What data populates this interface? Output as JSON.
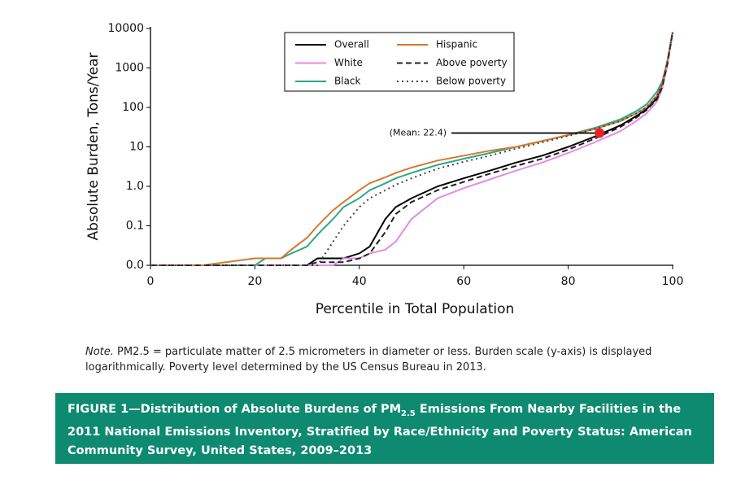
{
  "chart_data": {
    "type": "line",
    "y_label": "Absolute Burden, Tons/Year",
    "x_label": "Percentile in Total Population",
    "y_scale": "log",
    "xlim": [
      0,
      100
    ],
    "xticks": [
      0,
      20,
      40,
      60,
      80,
      100
    ],
    "ylim": [
      0.01,
      10000
    ],
    "yticks": [
      {
        "value": 0.01,
        "label": "0.0"
      },
      {
        "value": 0.1,
        "label": "0.1"
      },
      {
        "value": 1,
        "label": "1.0"
      },
      10,
      100,
      1000,
      10000
    ],
    "x": [
      0,
      10,
      20,
      22,
      25,
      27,
      30,
      32,
      35,
      37,
      40,
      42,
      45,
      47,
      50,
      55,
      60,
      65,
      70,
      75,
      80,
      85,
      90,
      93,
      95,
      97,
      98,
      99,
      100
    ],
    "series": [
      {
        "name": "Overall",
        "color": "#000000",
        "dash": "solid",
        "values": [
          0.01,
          0.01,
          0.01,
          0.01,
          0.01,
          0.01,
          0.01,
          0.015,
          0.015,
          0.015,
          0.02,
          0.03,
          0.15,
          0.3,
          0.5,
          1,
          1.6,
          2.5,
          4,
          6,
          10,
          18,
          35,
          60,
          90,
          170,
          350,
          1300,
          8000
        ]
      },
      {
        "name": "White",
        "color": "#e48be6",
        "dash": "solid",
        "values": [
          0.01,
          0.01,
          0.01,
          0.01,
          0.01,
          0.01,
          0.01,
          0.01,
          0.01,
          0.015,
          0.015,
          0.02,
          0.025,
          0.04,
          0.15,
          0.5,
          0.9,
          1.5,
          2.5,
          4,
          7,
          13,
          25,
          45,
          70,
          140,
          300,
          1200,
          8000
        ]
      },
      {
        "name": "Black",
        "color": "#2aa88a",
        "dash": "solid",
        "values": [
          0.01,
          0.01,
          0.01,
          0.015,
          0.015,
          0.02,
          0.03,
          0.06,
          0.15,
          0.3,
          0.5,
          0.8,
          1.2,
          1.6,
          2.2,
          3.5,
          5,
          7,
          10,
          14,
          20,
          30,
          50,
          80,
          120,
          250,
          450,
          1500,
          8000
        ]
      },
      {
        "name": "Hispanic",
        "color": "#d8782a",
        "dash": "solid",
        "values": [
          0.01,
          0.01,
          0.015,
          0.015,
          0.015,
          0.025,
          0.05,
          0.1,
          0.25,
          0.4,
          0.8,
          1.2,
          1.7,
          2.2,
          3,
          4.5,
          6,
          8,
          10,
          14,
          20,
          28,
          45,
          70,
          100,
          200,
          400,
          1500,
          8000
        ]
      },
      {
        "name": "Above poverty",
        "color": "#222222",
        "dash": "dashed",
        "values": [
          0.01,
          0.01,
          0.01,
          0.01,
          0.01,
          0.01,
          0.01,
          0.012,
          0.012,
          0.012,
          0.015,
          0.02,
          0.07,
          0.2,
          0.4,
          0.8,
          1.3,
          2.1,
          3.3,
          5,
          8.5,
          16,
          32,
          55,
          85,
          160,
          330,
          1300,
          8000
        ]
      },
      {
        "name": "Below poverty",
        "color": "#444444",
        "dash": "dotted",
        "values": [
          0.01,
          0.01,
          0.01,
          0.01,
          0.01,
          0.01,
          0.01,
          0.01,
          0.04,
          0.1,
          0.3,
          0.5,
          0.8,
          1.1,
          1.6,
          2.8,
          4.2,
          6,
          9,
          13,
          19,
          28,
          45,
          70,
          100,
          200,
          400,
          1500,
          8000
        ]
      }
    ],
    "annotation": {
      "text": "(Mean: 22.4)",
      "x": 86,
      "y": 22.4,
      "color": "#e8202a"
    },
    "note_label": "Note.",
    "note_text": " PM2.5 = particulate matter of 2.5 micrometers in diameter or less. Burden scale (y-axis) is displayed logarithmically. Poverty level determined by the US Census Bureau in 2013.",
    "caption_parts": [
      "FIGURE 1—Distribution of Absolute Burdens of PM",
      "2.5",
      " Emissions From Nearby Facilities in the 2011 National Emissions Inventory, Stratified by Race/Ethnicity and Poverty Status: American Community Survey, United States, 2009–2013"
    ]
  }
}
